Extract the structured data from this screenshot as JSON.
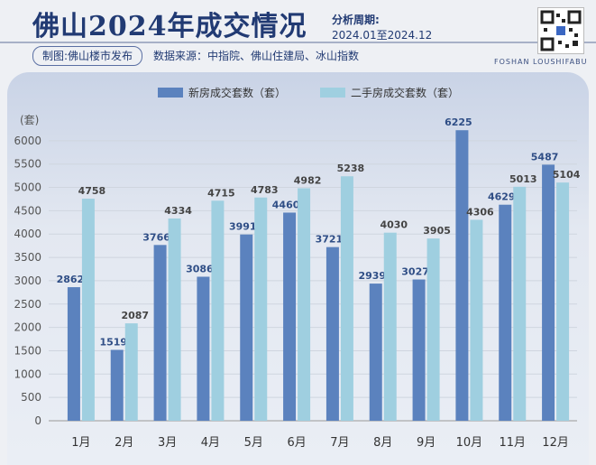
{
  "header": {
    "title": "佛山2024年成交情况",
    "period_label": "分析周期:",
    "period_value": "2024.01至2024.12",
    "credit": "制图:佛山楼市发布",
    "source": "数据来源：中指院、佛山住建局、冰山指数",
    "brand_en": "FOSHAN LOUSHIFABU"
  },
  "colors": {
    "new": "#5b82be",
    "second": "#9fcfe0",
    "title": "#213a73"
  },
  "chart_data": {
    "type": "bar",
    "title": "",
    "ylabel": "(套)",
    "xlabel": "",
    "ylim": [
      0,
      6500
    ],
    "yticks": [
      0,
      500,
      1000,
      1500,
      2000,
      2500,
      3000,
      3500,
      4000,
      4500,
      5000,
      5500,
      6000
    ],
    "categories": [
      "1月",
      "2月",
      "3月",
      "4月",
      "5月",
      "6月",
      "7月",
      "8月",
      "9月",
      "10月",
      "11月",
      "12月"
    ],
    "legend_position": "top",
    "series": [
      {
        "name": "新房成交套数（套）",
        "values": [
          2862,
          1519,
          3766,
          3086,
          3991,
          4460,
          3721,
          2939,
          3027,
          6225,
          4629,
          5487
        ]
      },
      {
        "name": "二手房成交套数（套）",
        "values": [
          4758,
          2087,
          4334,
          4715,
          4783,
          4982,
          5238,
          4030,
          3905,
          4306,
          5013,
          5104
        ]
      }
    ]
  }
}
